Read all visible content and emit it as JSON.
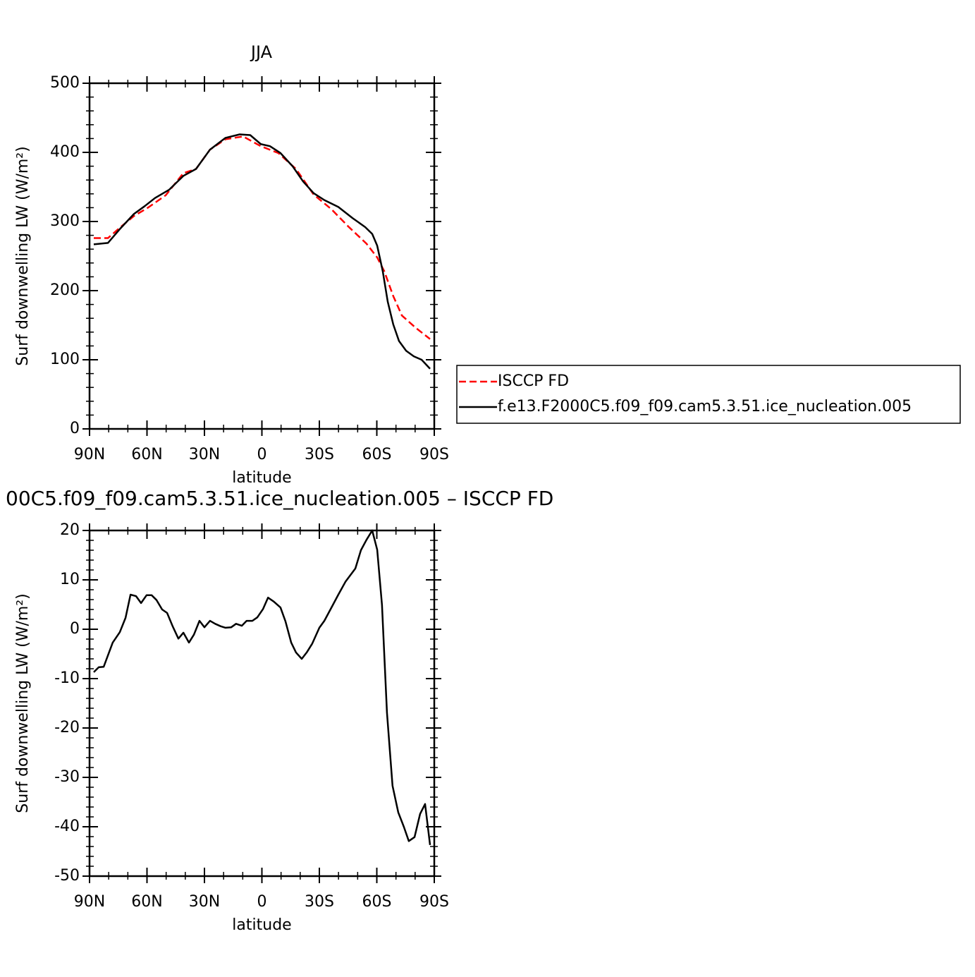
{
  "chart_data": [
    {
      "type": "line",
      "title": "JJA",
      "xlabel": "latitude",
      "ylabel": "Surf downwelling LW (W/m²)",
      "xlim": [
        90,
        -90
      ],
      "xticks": [
        {
          "value": 90,
          "label": "90N"
        },
        {
          "value": 60,
          "label": "60N"
        },
        {
          "value": 30,
          "label": "30N"
        },
        0,
        {
          "value": -30,
          "label": "30S"
        },
        {
          "value": -60,
          "label": "60S"
        },
        {
          "value": -90,
          "label": "90S"
        }
      ],
      "ylim": [
        0,
        500
      ],
      "yticks": [
        0,
        100,
        200,
        300,
        400,
        500
      ],
      "legend": "outside right",
      "series": [
        {
          "name": "ISCCP FD",
          "color": "#ff0000",
          "dash": true,
          "x": [
            87.8,
            80.4,
            74.2,
            66.8,
            59.5,
            50.2,
            41.0,
            34.4,
            27.1,
            19.0,
            9.8,
            0.6,
            -8.6,
            -17.8,
            -27.0,
            -36.2,
            -45.4,
            -54.6,
            -60.2,
            -63.9,
            -68.6,
            -73.1,
            -80.4,
            -87.8
          ],
          "values": [
            276,
            276,
            291,
            308,
            320,
            338,
            370,
            376,
            404,
            419,
            423,
            409,
            399,
            376,
            339,
            318,
            292,
            268,
            248,
            228,
            192,
            164,
            146,
            130
          ]
        },
        {
          "name": "f.e13.F2000C5.f09_f09.cam5.3.51.ice_nucleation.005",
          "color": "#000000",
          "dash": false,
          "x": [
            87.8,
            80.4,
            74.2,
            66.8,
            61.3,
            55.8,
            48.4,
            41.0,
            34.4,
            27.1,
            19.0,
            11.6,
            6.1,
            0.6,
            -4.2,
            -9.7,
            -16.0,
            -21.5,
            -27.0,
            -32.6,
            -39.9,
            -47.3,
            -53.9,
            -57.6,
            -60.2,
            -63.1,
            -65.7,
            -68.6,
            -71.6,
            -75.3,
            -79.3,
            -83.4,
            -87.8
          ],
          "values": [
            267,
            269,
            289,
            311,
            322,
            334,
            346,
            366,
            376,
            404,
            421,
            426,
            425,
            412,
            409,
            399,
            380,
            358,
            341,
            331,
            321,
            305,
            292,
            282,
            265,
            228,
            184,
            151,
            127,
            113,
            105,
            100,
            87
          ]
        }
      ]
    },
    {
      "type": "line",
      "title": "00C5.f09_f09.cam5.3.51.ice_nucleation.005 – ISCCP FD",
      "xlabel": "latitude",
      "ylabel": "Surf downwelling LW (W/m²)",
      "xlim": [
        90,
        -90
      ],
      "xticks": [
        {
          "value": 90,
          "label": "90N"
        },
        {
          "value": 60,
          "label": "60N"
        },
        {
          "value": 30,
          "label": "30N"
        },
        0,
        {
          "value": -30,
          "label": "30S"
        },
        {
          "value": -60,
          "label": "60S"
        },
        {
          "value": -90,
          "label": "90S"
        }
      ],
      "ylim": [
        -50,
        20
      ],
      "yticks": [
        -50,
        -40,
        -30,
        -20,
        -10,
        0,
        10,
        20
      ],
      "series": [
        {
          "color": "#000000",
          "dash": false,
          "x": [
            87.8,
            85.2,
            82.6,
            77.9,
            74.2,
            71.2,
            68.6,
            65.7,
            63.1,
            60.2,
            57.6,
            55.0,
            52.1,
            49.5,
            46.6,
            43.6,
            41.0,
            38.1,
            35.5,
            32.6,
            30.0,
            27.1,
            24.4,
            21.5,
            19.0,
            16.0,
            13.5,
            10.5,
            8.0,
            5.0,
            2.4,
            -0.6,
            -3.2,
            -6.2,
            -9.7,
            -12.3,
            -15.3,
            -17.8,
            -20.8,
            -23.4,
            -26.3,
            -30.0,
            -32.6,
            -36.2,
            -39.9,
            -43.6,
            -48.8,
            -51.7,
            -54.6,
            -57.6,
            -60.2,
            -62.7,
            -65.3,
            -68.2,
            -71.2,
            -74.1,
            -76.7,
            -79.7,
            -82.6,
            -85.2,
            -87.8
          ],
          "values": [
            -8.7,
            -7.7,
            -7.6,
            -2.7,
            -0.6,
            2.3,
            7.0,
            6.7,
            5.3,
            6.9,
            6.9,
            5.9,
            4.0,
            3.3,
            0.6,
            -1.9,
            -0.7,
            -2.7,
            -1.1,
            1.7,
            0.4,
            1.7,
            1.1,
            0.6,
            0.3,
            0.4,
            1.1,
            0.7,
            1.7,
            1.7,
            2.4,
            4.1,
            6.4,
            5.6,
            4.4,
            1.6,
            -2.7,
            -4.7,
            -6.0,
            -4.7,
            -2.9,
            0.3,
            1.7,
            4.3,
            7.0,
            9.6,
            12.3,
            16.0,
            18.1,
            20.0,
            16.1,
            4.9,
            -16.9,
            -31.7,
            -37.1,
            -40.0,
            -42.9,
            -42.1,
            -37.4,
            -35.4,
            -43.7
          ]
        }
      ]
    }
  ]
}
